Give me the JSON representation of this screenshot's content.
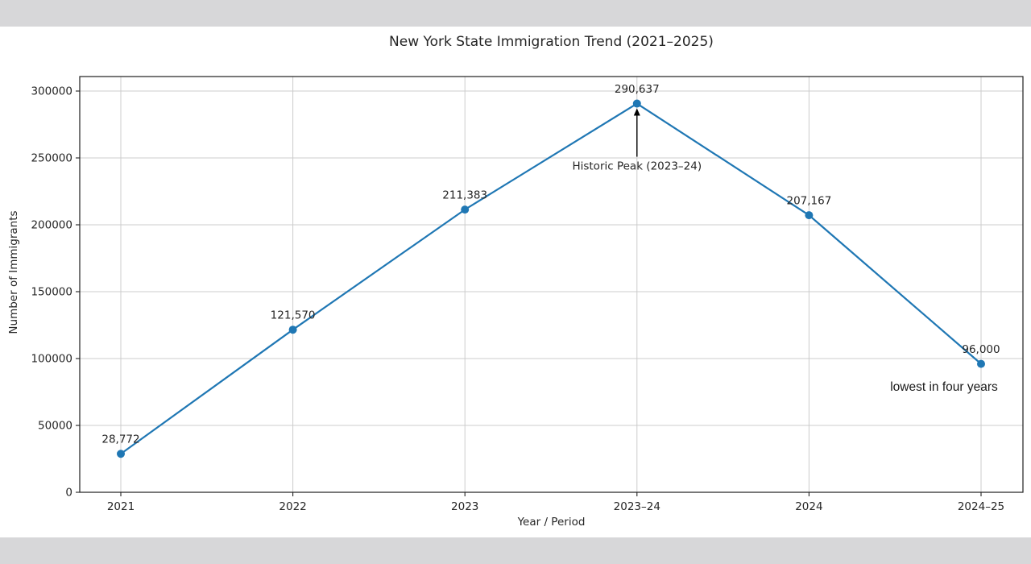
{
  "page": {
    "band_color": "#d7d7d9",
    "figure_background": "#ffffff"
  },
  "chart_data": {
    "type": "line",
    "title": "New York State Immigration Trend (2021–2025)",
    "xlabel": "Year / Period",
    "ylabel": "Number of Immigrants",
    "categories": [
      "2021",
      "2022",
      "2023",
      "2023–24",
      "2024",
      "2024–25"
    ],
    "values": [
      28772,
      121570,
      211383,
      290637,
      207167,
      96000
    ],
    "point_labels": [
      "28,772",
      "121,570",
      "211,383",
      "290,637",
      "207,167",
      "96,000"
    ],
    "yticks": [
      0,
      50000,
      100000,
      150000,
      200000,
      250000,
      300000
    ],
    "ytick_labels": [
      "0",
      "50000",
      "100000",
      "150000",
      "200000",
      "250000",
      "300000"
    ],
    "ylim": [
      0,
      311000
    ],
    "grid": true,
    "legend": "none",
    "marker": "circle",
    "line_color": "#1f77b4",
    "marker_color": "#1f77b4",
    "grid_color": "#cccccc",
    "spine_color": "#1f1f1f",
    "text_color": "#262626",
    "annotations": [
      {
        "text": "Historic Peak (2023–24)",
        "target_category": "2023–24",
        "arrow": true,
        "arrow_color": "#000000"
      },
      {
        "text": "lowest in four years",
        "target_category": "2024–25",
        "arrow": false
      }
    ]
  }
}
